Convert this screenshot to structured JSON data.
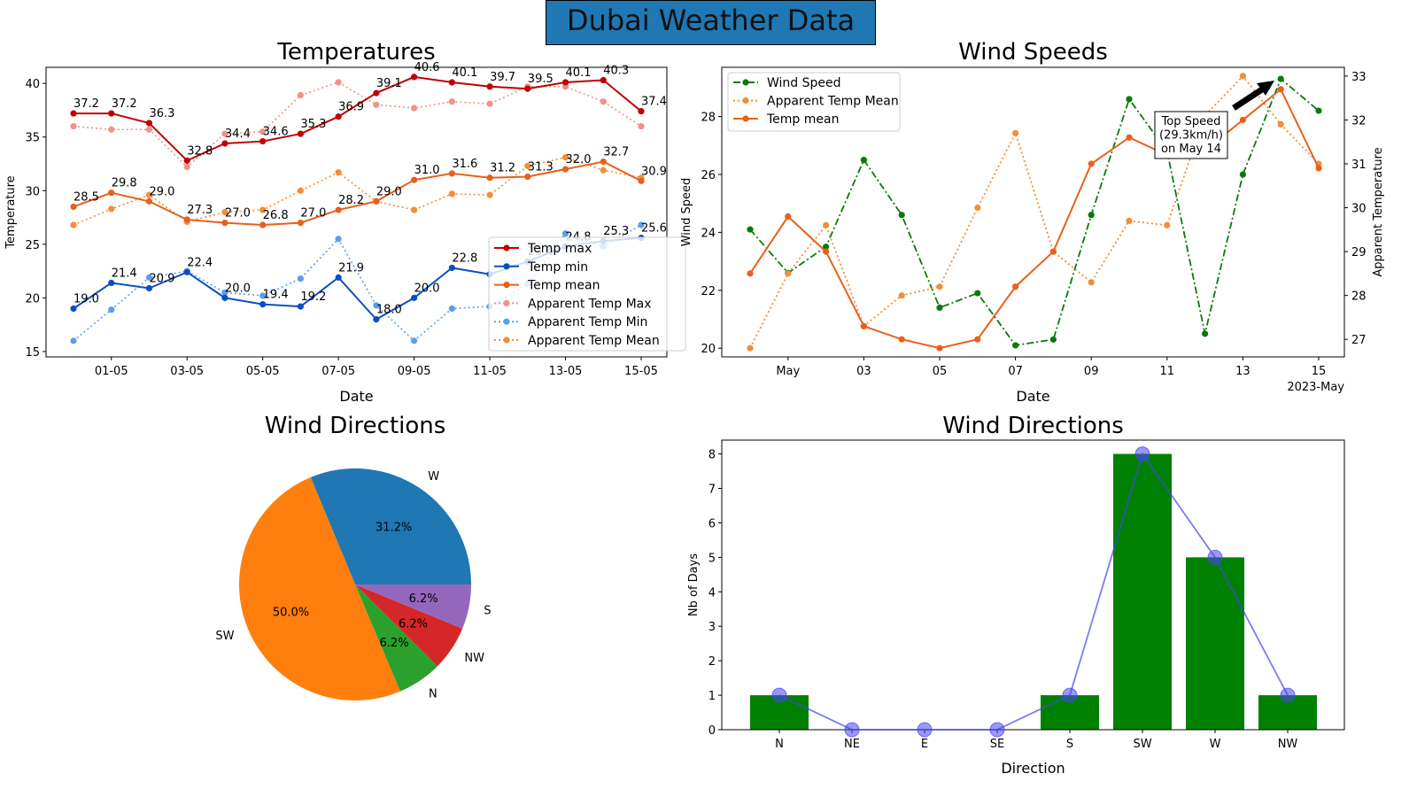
{
  "figure_title": "Dubai Weather Data",
  "chart_data": [
    {
      "id": "temperatures",
      "type": "line",
      "title": "Temperatures",
      "xlabel": "Date",
      "ylabel": "Temperature",
      "x": [
        "2023-04-30",
        "2023-05-01",
        "2023-05-02",
        "2023-05-03",
        "2023-05-04",
        "2023-05-05",
        "2023-05-06",
        "2023-05-07",
        "2023-05-08",
        "2023-05-09",
        "2023-05-10",
        "2023-05-11",
        "2023-05-12",
        "2023-05-13",
        "2023-05-14",
        "2023-05-15"
      ],
      "x_tick_labels": [
        "01-05",
        "03-05",
        "05-05",
        "07-05",
        "09-05",
        "11-05",
        "13-05",
        "15-05"
      ],
      "ylim": [
        14.5,
        41.5
      ],
      "y_ticks": [
        15,
        20,
        25,
        30,
        35,
        40
      ],
      "legend_position": "lower-right",
      "series": [
        {
          "name": "Temp max",
          "color": "#c00000",
          "style": "solid",
          "values": [
            37.2,
            37.2,
            36.3,
            32.8,
            34.4,
            34.6,
            35.3,
            36.9,
            39.1,
            40.6,
            40.1,
            39.7,
            39.5,
            40.1,
            40.3,
            37.4
          ],
          "labels": [
            "37.2",
            "37.2",
            "36.3",
            "32.8",
            "34.4",
            "34.6",
            "35.3",
            "36.9",
            "39.1",
            "40.6",
            "40.1",
            "39.7",
            "39.5",
            "40.1",
            "40.3",
            "37.4"
          ]
        },
        {
          "name": "Temp min",
          "color": "#0a4fc2",
          "style": "solid",
          "values": [
            19.0,
            21.4,
            20.9,
            22.4,
            20.0,
            19.4,
            19.2,
            21.9,
            18.0,
            20.0,
            22.8,
            22.2,
            23.4,
            24.8,
            25.3,
            25.6
          ],
          "labels": [
            "19.0",
            "21.4",
            "20.9",
            "22.4",
            "20.0",
            "19.4",
            "19.2",
            "21.9",
            "18.0",
            "20.0",
            "22.8",
            "",
            "23.4",
            "24.8",
            "25.3",
            "25.6"
          ]
        },
        {
          "name": "Temp mean",
          "color": "#e8601c",
          "style": "solid",
          "values": [
            28.5,
            29.8,
            29.0,
            27.3,
            27.0,
            26.8,
            27.0,
            28.2,
            29.0,
            31.0,
            31.6,
            31.2,
            31.3,
            32.0,
            32.7,
            30.9
          ],
          "labels": [
            "28.5",
            "29.8",
            "29.0",
            "27.3",
            "27.0",
            "26.8",
            "27.0",
            "28.2",
            "29.0",
            "31.0",
            "31.6",
            "31.2",
            "31.3",
            "32.0",
            "32.7",
            "30.9"
          ]
        },
        {
          "name": "Apparent Temp Max",
          "color": "#f2908a",
          "style": "dotted",
          "values": [
            36.0,
            35.7,
            35.7,
            32.2,
            35.3,
            35.5,
            38.9,
            40.1,
            38.0,
            37.7,
            38.3,
            38.1,
            39.7,
            39.7,
            38.3,
            36.0
          ],
          "labels": []
        },
        {
          "name": "Apparent Temp Min",
          "color": "#5c9df2",
          "style": "dotted",
          "values": [
            16.0,
            18.9,
            21.9,
            22.5,
            20.5,
            20.2,
            21.8,
            25.5,
            19.3,
            16.0,
            19.0,
            19.2,
            21.3,
            26.0,
            24.8,
            26.8
          ],
          "labels": []
        },
        {
          "name": "Apparent Temp Mean",
          "color": "#f28e3a",
          "style": "dotted",
          "values": [
            26.8,
            28.3,
            29.6,
            27.1,
            28.0,
            28.2,
            30.0,
            31.7,
            29.0,
            28.2,
            29.7,
            29.6,
            32.3,
            33.1,
            31.9,
            31.2
          ],
          "labels": []
        }
      ]
    },
    {
      "id": "wind-speeds",
      "type": "line",
      "title": "Wind Speeds",
      "xlabel": "Date",
      "ylabel": "Wind Speed",
      "y2label": "Apparent Temperature",
      "x": [
        "2023-04-30",
        "2023-05-01",
        "2023-05-02",
        "2023-05-03",
        "2023-05-04",
        "2023-05-05",
        "2023-05-06",
        "2023-05-07",
        "2023-05-08",
        "2023-05-09",
        "2023-05-10",
        "2023-05-11",
        "2023-05-12",
        "2023-05-13",
        "2023-05-14",
        "2023-05-15"
      ],
      "x_tick_labels": [
        "May",
        "03",
        "05",
        "07",
        "09",
        "11",
        "13",
        "15"
      ],
      "x_offset_label": "2023-May",
      "ylim": [
        19.7,
        29.7
      ],
      "y_ticks": [
        20,
        22,
        24,
        26,
        28
      ],
      "y2lim": [
        26.6,
        33.2
      ],
      "y2_ticks": [
        27,
        28,
        29,
        30,
        31,
        32,
        33
      ],
      "legend_position": "top-left",
      "annotation": "Top Speed\n(29.3km/h)\non May 14",
      "series": [
        {
          "name": "Wind Speed",
          "axis": "left",
          "color": "#0a7a0a",
          "style": "dashdot",
          "values": [
            24.1,
            22.6,
            23.5,
            26.5,
            24.6,
            21.4,
            21.9,
            20.1,
            20.3,
            24.6,
            28.6,
            26.8,
            20.5,
            26.0,
            29.3,
            28.2
          ]
        },
        {
          "name": "Apparent Temp Mean",
          "axis": "right",
          "color": "#f28e3a",
          "style": "dotted",
          "values": [
            26.8,
            28.5,
            29.6,
            27.3,
            28.0,
            28.2,
            30.0,
            31.7,
            29.0,
            28.3,
            29.7,
            29.6,
            32.1,
            33.0,
            31.9,
            31.0
          ]
        },
        {
          "name": "Temp mean",
          "axis": "right",
          "color": "#e8601c",
          "style": "solid",
          "values": [
            28.5,
            29.8,
            29.0,
            27.3,
            27.0,
            26.8,
            27.0,
            28.2,
            29.0,
            31.0,
            31.6,
            31.2,
            31.3,
            32.0,
            32.7,
            30.9
          ]
        }
      ]
    },
    {
      "id": "wind-directions-pie",
      "type": "pie",
      "title": "Wind Directions",
      "slices": [
        {
          "label": "W",
          "value": 31.2,
          "pct": "31.2%",
          "color": "#1f77b4"
        },
        {
          "label": "SW",
          "value": 50.0,
          "pct": "50.0%",
          "color": "#ff7f0e"
        },
        {
          "label": "N",
          "value": 6.2,
          "pct": "6.2%",
          "color": "#2ca02c"
        },
        {
          "label": "NW",
          "value": 6.2,
          "pct": "6.2%",
          "color": "#d62728"
        },
        {
          "label": "S",
          "value": 6.2,
          "pct": "6.2%",
          "color": "#9467bd"
        }
      ]
    },
    {
      "id": "wind-directions-bar",
      "type": "bar",
      "title": "Wind Directions",
      "xlabel": "Direction",
      "ylabel": "Nb of Days",
      "categories": [
        "N",
        "NE",
        "E",
        "SE",
        "S",
        "SW",
        "W",
        "NW"
      ],
      "values": [
        1,
        0,
        0,
        0,
        1,
        8,
        5,
        1
      ],
      "ylim": [
        0,
        8.4
      ],
      "y_ticks": [
        0,
        1,
        2,
        3,
        4,
        5,
        6,
        7,
        8
      ],
      "bar_color": "#008000",
      "line_color": "#4444ee"
    }
  ]
}
